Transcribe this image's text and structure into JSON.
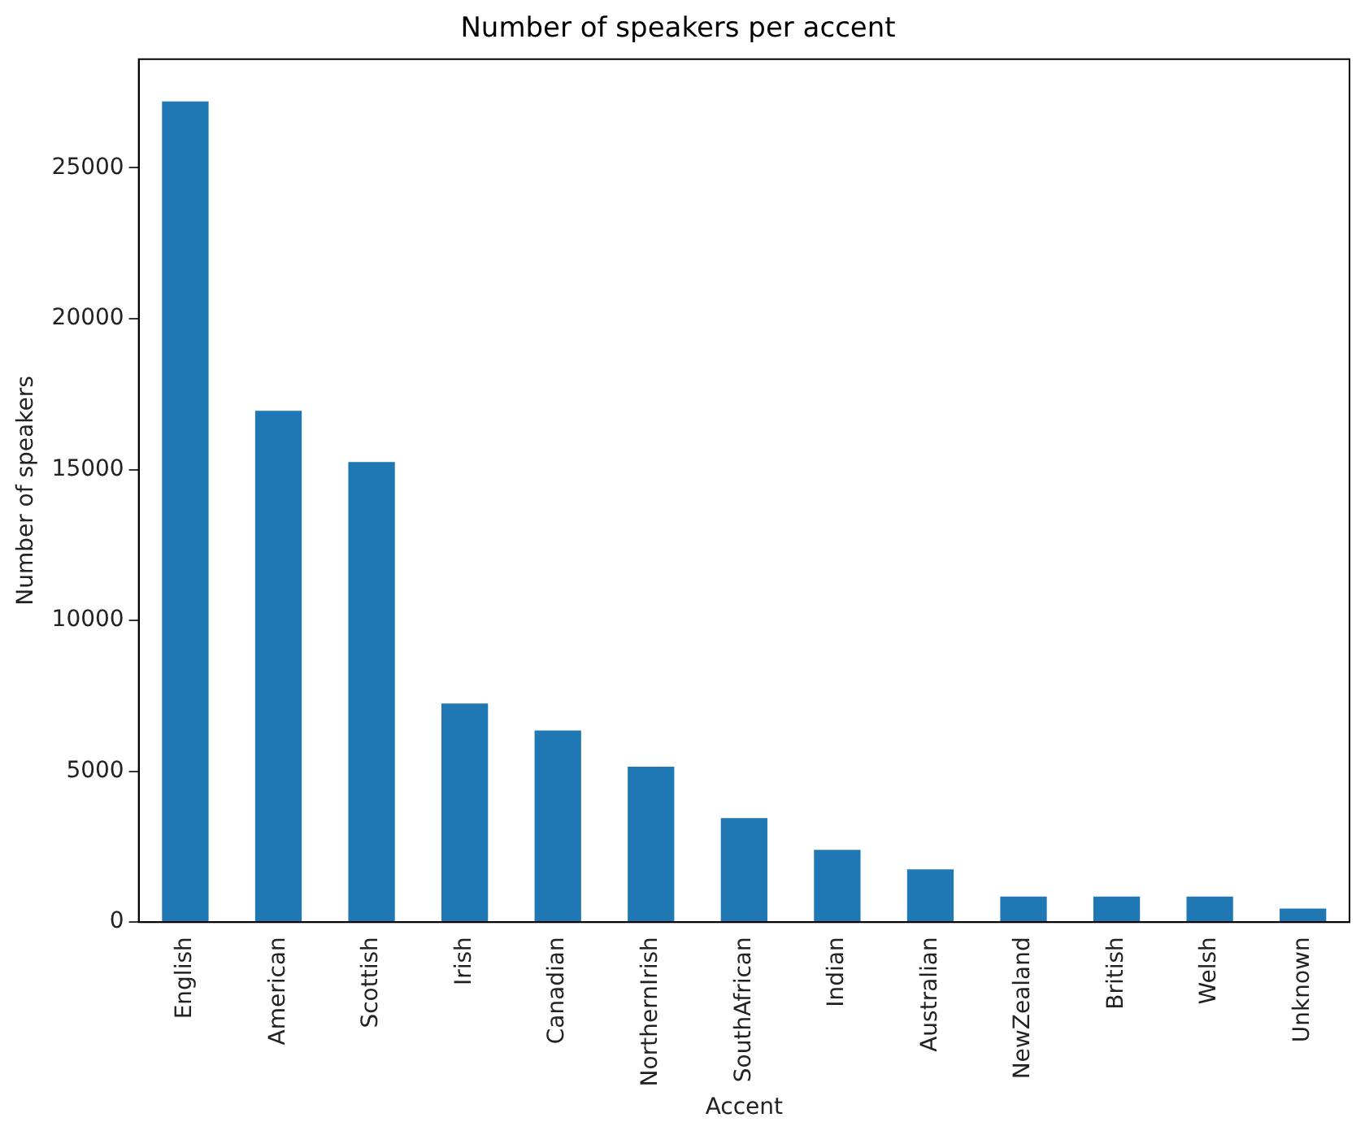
{
  "chart_data": {
    "type": "bar",
    "title": "Number of speakers per accent",
    "xlabel": "Accent",
    "ylabel": "Number of speakers",
    "categories": [
      "English",
      "American",
      "Scottish",
      "Irish",
      "Canadian",
      "NorthernIrish",
      "SouthAfrican",
      "Indian",
      "Australian",
      "NewZealand",
      "British",
      "Welsh",
      "Unknown"
    ],
    "values": [
      27200,
      16950,
      15250,
      7250,
      6350,
      5150,
      3450,
      2400,
      1750,
      850,
      850,
      850,
      450
    ],
    "color": "#1f77b4",
    "ylim": [
      0,
      28600
    ],
    "yticks": [
      0,
      5000,
      10000,
      15000,
      20000,
      25000
    ],
    "grid": false,
    "legend": false
  }
}
